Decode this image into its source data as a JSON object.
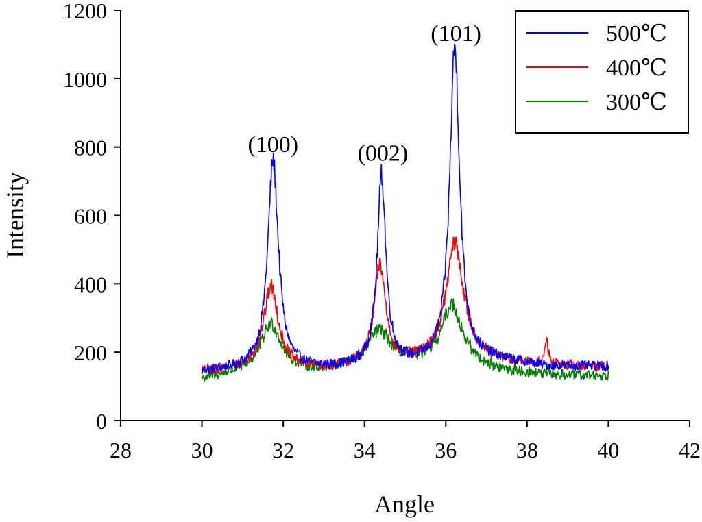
{
  "chart_data": {
    "type": "line",
    "title": "",
    "xlabel": "Angle",
    "ylabel": "Intensity",
    "xlim": [
      28,
      42
    ],
    "ylim": [
      0,
      1200
    ],
    "xticks": [
      28,
      30,
      32,
      34,
      36,
      38,
      40,
      42
    ],
    "yticks": [
      0,
      200,
      400,
      600,
      800,
      1000,
      1200
    ],
    "grid": false,
    "legend_position": "top-right",
    "annotations": [
      {
        "text": "(100)",
        "x": 31.75,
        "y": 785
      },
      {
        "text": "(002)",
        "x": 34.45,
        "y": 760
      },
      {
        "text": "(101)",
        "x": 36.25,
        "y": 1110
      }
    ],
    "series": [
      {
        "name": "500℃",
        "color": "#0000ff",
        "baseline": [
          [
            30,
            142
          ],
          [
            31,
            150
          ],
          [
            33,
            150
          ],
          [
            35,
            160
          ],
          [
            36.6,
            175
          ],
          [
            37.2,
            175
          ],
          [
            38.5,
            158
          ],
          [
            40,
            158
          ]
        ],
        "peaks": [
          {
            "center": 31.75,
            "height": 610,
            "width": 0.16
          },
          {
            "center": 34.42,
            "height": 555,
            "width": 0.13
          },
          {
            "center": 36.22,
            "height": 920,
            "width": 0.15
          }
        ],
        "noise": 14
      },
      {
        "name": "400℃",
        "color": "#ff0000",
        "baseline": [
          [
            30,
            142
          ],
          [
            31,
            150
          ],
          [
            33,
            150
          ],
          [
            35,
            165
          ],
          [
            36.6,
            180
          ],
          [
            37.2,
            170
          ],
          [
            38.5,
            160
          ],
          [
            40,
            158
          ]
        ],
        "peaks": [
          {
            "center": 31.7,
            "height": 240,
            "width": 0.22
          },
          {
            "center": 34.38,
            "height": 290,
            "width": 0.17
          },
          {
            "center": 36.22,
            "height": 340,
            "width": 0.26
          },
          {
            "center": 38.48,
            "height": 70,
            "width": 0.05
          }
        ],
        "noise": 15
      },
      {
        "name": "300℃",
        "color": "#008000",
        "baseline": [
          [
            30,
            120
          ],
          [
            31,
            140
          ],
          [
            33,
            145
          ],
          [
            35,
            165
          ],
          [
            36.6,
            160
          ],
          [
            37.2,
            145
          ],
          [
            38.5,
            132
          ],
          [
            40,
            130
          ]
        ],
        "peaks": [
          {
            "center": 31.7,
            "height": 140,
            "width": 0.3
          },
          {
            "center": 34.35,
            "height": 100,
            "width": 0.35
          },
          {
            "center": 36.15,
            "height": 175,
            "width": 0.3
          }
        ],
        "noise": 16
      }
    ]
  }
}
